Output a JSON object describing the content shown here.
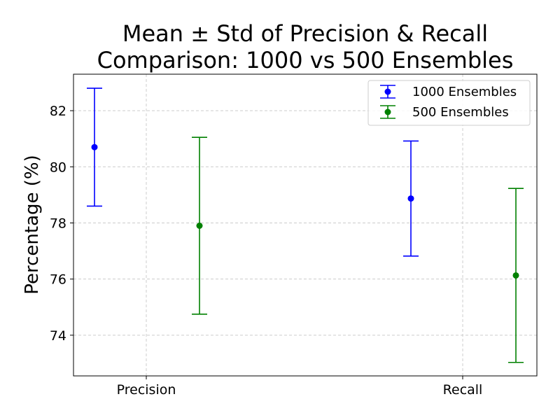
{
  "chart_data": {
    "type": "errorbar",
    "title": [
      "Mean ± Std of Precision & Recall",
      "Comparison: 1000 vs 500 Ensembles"
    ],
    "xlabel": "",
    "ylabel": "Percentage (%)",
    "categories": [
      "Precision",
      "Recall"
    ],
    "ylim": [
      72.55,
      83.3
    ],
    "yticks": [
      74,
      76,
      78,
      80,
      82
    ],
    "grid": true,
    "legend_position": "top-right",
    "series": [
      {
        "name": "1000 Ensembles",
        "color": "#0000ff",
        "points": [
          {
            "category": "Precision",
            "mean": 80.7,
            "std": 2.1
          },
          {
            "category": "Recall",
            "mean": 78.87,
            "std": 2.05
          }
        ]
      },
      {
        "name": "500 Ensembles",
        "color": "#008000",
        "points": [
          {
            "category": "Precision",
            "mean": 77.9,
            "std": 3.15
          },
          {
            "category": "Recall",
            "mean": 76.13,
            "std": 3.1
          }
        ]
      }
    ]
  }
}
